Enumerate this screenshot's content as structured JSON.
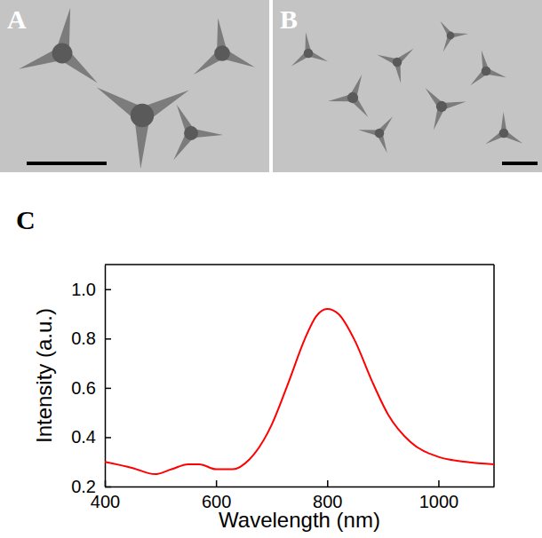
{
  "images": [
    {
      "label": "A"
    },
    {
      "label": "B"
    }
  ],
  "chart_data": {
    "type": "line",
    "label": "C",
    "x_label": "Wavelength (nm)",
    "y_label": "Intensity (a.u.)",
    "x": [
      400,
      450,
      490,
      520,
      550,
      570,
      600,
      630,
      660,
      700,
      730,
      760,
      780,
      800,
      820,
      850,
      880,
      910,
      950,
      1000,
      1050,
      1100
    ],
    "values": [
      0.3,
      0.275,
      0.25,
      0.27,
      0.29,
      0.29,
      0.27,
      0.27,
      0.31,
      0.45,
      0.62,
      0.8,
      0.89,
      0.92,
      0.9,
      0.79,
      0.63,
      0.49,
      0.38,
      0.32,
      0.3,
      0.29
    ],
    "color": "#ff0000",
    "xlim": [
      400,
      1100
    ],
    "xticks": [
      400,
      600,
      800,
      1000
    ],
    "ylim": [
      0.2,
      1.1
    ],
    "yticks": [
      0.2,
      0.4,
      0.6,
      0.8,
      {
        "value": 1.0,
        "label": "1.0"
      }
    ],
    "grid": false
  }
}
